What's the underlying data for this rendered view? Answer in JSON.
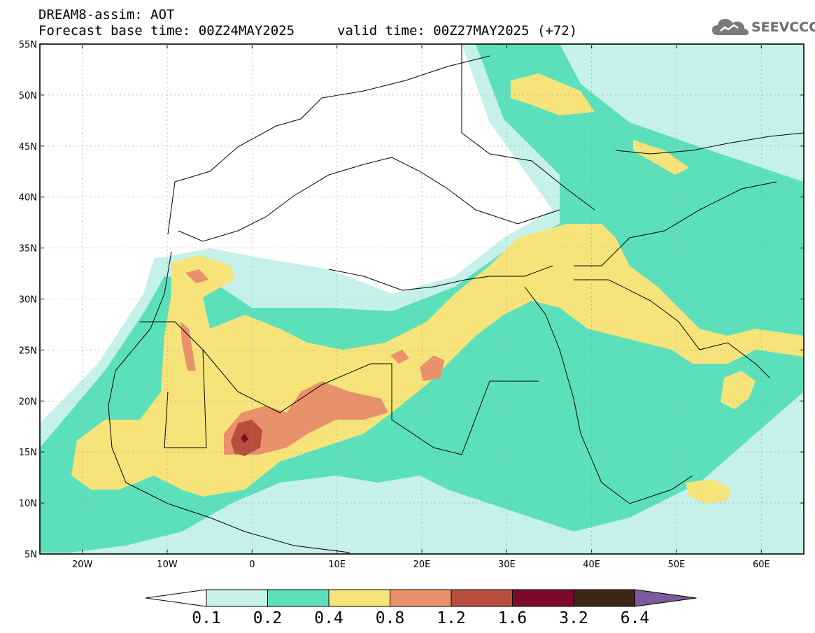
{
  "header": {
    "title_line1": "DREAM8-assim: AOT",
    "title_line2": "Forecast base time: 00Z24MAY2025",
    "valid_time": "valid time: 00Z27MAY2025 (+72)",
    "logo_text": "SEEVCCC",
    "logo_icon": "cloud-icon"
  },
  "map": {
    "lat_labels": [
      "55N",
      "50N",
      "45N",
      "40N",
      "35N",
      "30N",
      "25N",
      "20N",
      "15N",
      "10N",
      "5N"
    ],
    "lon_labels": [
      "20W",
      "10W",
      "0",
      "10E",
      "20E",
      "30E",
      "40E",
      "50E",
      "60E"
    ],
    "extent": {
      "lon": [
        -25,
        65
      ],
      "lat": [
        5,
        55
      ]
    }
  },
  "colorbar": {
    "levels": [
      "0.1",
      "0.2",
      "0.4",
      "0.8",
      "1.2",
      "1.6",
      "3.2",
      "6.4"
    ],
    "colors": [
      "#c6f0ea",
      "#5ce0bb",
      "#f6e47a",
      "#e9916a",
      "#ba4e3e",
      "#7d0a2a",
      "#3d2518",
      "#7d5a9c"
    ],
    "under_color": "#ffffff"
  }
}
